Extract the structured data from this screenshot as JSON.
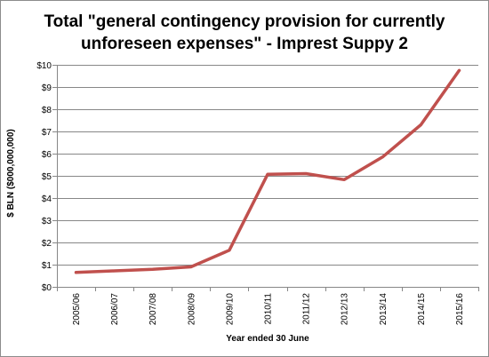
{
  "chart_data": {
    "type": "line",
    "title_lines": [
      "Total \"general contingency provision for currently",
      "unforeseen expenses\" - Imprest Suppy 2"
    ],
    "xlabel": "Year ended 30 June",
    "ylabel": "$ BLN ($000,000,000)",
    "categories": [
      "2005/06",
      "2006/07",
      "2007/08",
      "2008/09",
      "2009/10",
      "2010/11",
      "2011/12",
      "2012/13",
      "2013/14",
      "2014/15",
      "2015/16"
    ],
    "series": [
      {
        "values": [
          0.65,
          0.72,
          0.79,
          0.9,
          1.65,
          5.07,
          5.1,
          4.83,
          5.85,
          7.3,
          9.75
        ]
      }
    ],
    "ylim": [
      0,
      10
    ],
    "yticks": [
      0,
      1,
      2,
      3,
      4,
      5,
      6,
      7,
      8,
      9,
      10
    ],
    "ytick_labels": [
      "$0",
      "$1",
      "$2",
      "$3",
      "$4",
      "$5",
      "$6",
      "$7",
      "$8",
      "$9",
      "$10"
    ],
    "grid": true,
    "legend": "none",
    "colors": {
      "line": "#c0504d",
      "grid": "#878787",
      "axis": "#878787"
    }
  }
}
